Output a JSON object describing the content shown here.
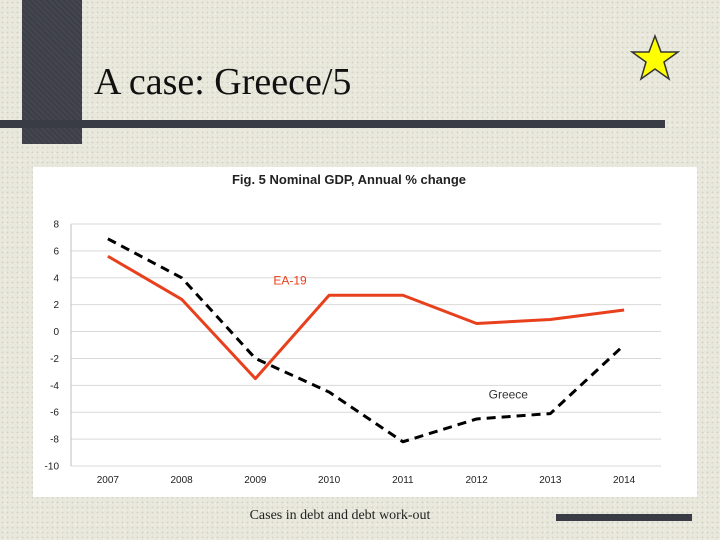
{
  "slide": {
    "title": "A case: Greece/5",
    "footer": "Cases in debt and debt work-out"
  },
  "colors": {
    "rule": "#3a3c45",
    "star": "#ffff00",
    "ea19": "#e8401c",
    "greece": "#000000",
    "grid": "#d9d9d9"
  },
  "icons": {
    "star": "star-icon"
  },
  "chart_data": {
    "type": "line",
    "title": "Fig. 5 Nominal GDP, Annual % change",
    "categories": [
      "2007",
      "2008",
      "2009",
      "2010",
      "2011",
      "2012",
      "2013",
      "2014"
    ],
    "series": [
      {
        "name": "EA-19",
        "values": [
          5.6,
          2.4,
          -3.5,
          2.7,
          2.7,
          0.6,
          0.9,
          1.6
        ],
        "color": "#e8401c",
        "style": "solid"
      },
      {
        "name": "Greece",
        "values": [
          6.9,
          4.0,
          -2.0,
          -4.5,
          -8.2,
          -6.5,
          -6.1,
          -1.0
        ],
        "color": "#000000",
        "style": "dashed"
      }
    ],
    "yticks": [
      8,
      6,
      4,
      2,
      0,
      -2,
      -4,
      -6,
      -8,
      -10
    ],
    "ylim": [
      -10,
      8
    ],
    "grid": "horizontal",
    "xlabel": "",
    "ylabel": ""
  }
}
